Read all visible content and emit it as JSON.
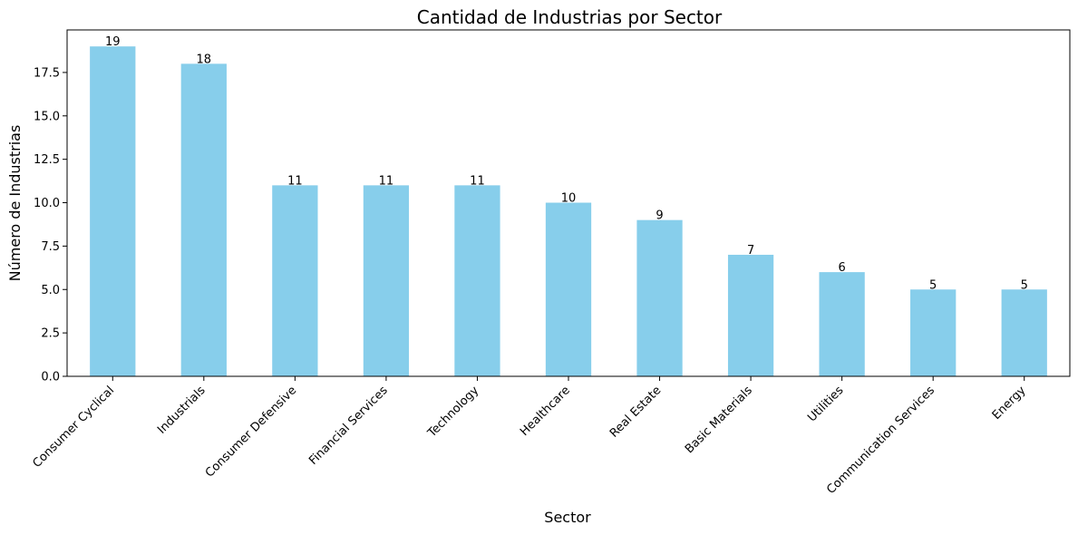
{
  "chart_data": {
    "type": "bar",
    "title": "Cantidad de Industrias por Sector",
    "xlabel": "Sector",
    "ylabel": "Número de Industrias",
    "categories": [
      "Consumer Cyclical",
      "Industrials",
      "Consumer Defensive",
      "Financial Services",
      "Technology",
      "Healthcare",
      "Real Estate",
      "Basic Materials",
      "Utilities",
      "Communication Services",
      "Energy"
    ],
    "values": [
      19,
      18,
      11,
      11,
      11,
      10,
      9,
      7,
      6,
      5,
      5
    ],
    "yticks": [
      "0.0",
      "2.5",
      "5.0",
      "7.5",
      "10.0",
      "12.5",
      "15.0",
      "17.5"
    ],
    "ylim": [
      0,
      19.95
    ],
    "bar_color": "#87CEEB",
    "grid": false,
    "legend": "none"
  }
}
